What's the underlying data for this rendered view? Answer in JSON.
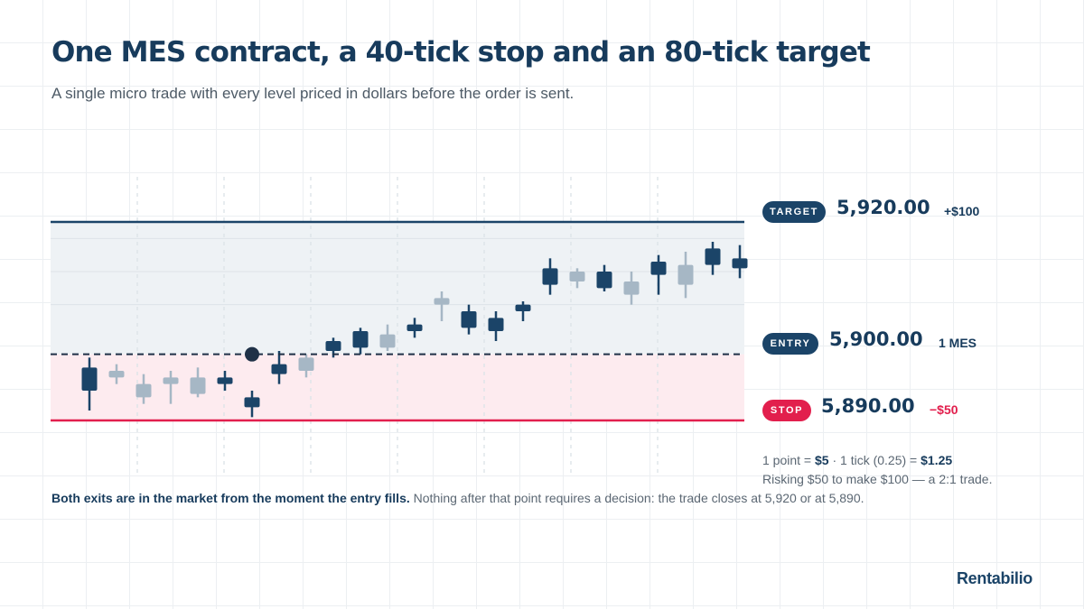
{
  "header": {
    "title": "One MES contract, a 40-tick stop and an 80-tick target",
    "subtitle": "A single micro trade with every level priced in dollars before the order is sent."
  },
  "levels": {
    "target": {
      "badge": "TARGET",
      "price": "5,920.00",
      "note": "+$100"
    },
    "entry": {
      "badge": "ENTRY",
      "price": "5,900.00",
      "note": "1 MES"
    },
    "stop": {
      "badge": "STOP",
      "price": "5,890.00",
      "note": "−$50"
    }
  },
  "math": {
    "point_pre": "1 point = ",
    "point_value": "$5",
    "tick_pre": " · 1 tick (0.25) = ",
    "tick_value": "$1.25",
    "risk_text": "Risking $50 to make $100 — a 2:1 trade."
  },
  "footnote": {
    "bold": "Both exits are in the market from the moment the entry fills.",
    "rest": " Nothing after that point requires a decision: the trade closes at 5,920 or at 5,890."
  },
  "brand": {
    "name": "Rentabilio"
  },
  "colors": {
    "navy": "#1b4468",
    "muted_candle": "#a6b7c5",
    "stop_red": "#e21f4d",
    "reward_zone": "#eef2f5",
    "risk_zone": "#fdebef"
  },
  "chart_data": {
    "type": "candlestick",
    "levels": {
      "target": 5920,
      "entry": 5900,
      "stop": 5890
    },
    "entry_candle_index": 6,
    "candles": [
      {
        "open": 5898.0,
        "close": 5894.5,
        "high": 5899.5,
        "low": 5891.5,
        "active": true
      },
      {
        "open": 5897.5,
        "close": 5896.5,
        "high": 5898.5,
        "low": 5895.5,
        "active": false
      },
      {
        "open": 5895.5,
        "close": 5893.5,
        "high": 5897.0,
        "low": 5892.5,
        "active": false
      },
      {
        "open": 5896.5,
        "close": 5895.5,
        "high": 5897.5,
        "low": 5892.5,
        "active": false
      },
      {
        "open": 5896.5,
        "close": 5894.0,
        "high": 5898.0,
        "low": 5893.5,
        "active": false
      },
      {
        "open": 5896.5,
        "close": 5895.5,
        "high": 5897.5,
        "low": 5894.5,
        "active": true
      },
      {
        "open": 5893.5,
        "close": 5892.0,
        "high": 5894.5,
        "low": 5890.5,
        "active": true
      },
      {
        "open": 5898.5,
        "close": 5897.0,
        "high": 5900.5,
        "low": 5895.5,
        "active": true
      },
      {
        "open": 5899.5,
        "close": 5897.5,
        "high": 5900.0,
        "low": 5896.5,
        "active": false
      },
      {
        "open": 5902.0,
        "close": 5900.5,
        "high": 5902.5,
        "low": 5899.5,
        "active": true
      },
      {
        "open": 5903.5,
        "close": 5901.0,
        "high": 5904.0,
        "low": 5900.0,
        "active": true
      },
      {
        "open": 5903.0,
        "close": 5901.0,
        "high": 5904.5,
        "low": 5900.5,
        "active": false
      },
      {
        "open": 5904.5,
        "close": 5903.5,
        "high": 5905.5,
        "low": 5902.5,
        "active": true
      },
      {
        "open": 5908.5,
        "close": 5907.5,
        "high": 5909.5,
        "low": 5905.0,
        "active": false
      },
      {
        "open": 5906.5,
        "close": 5904.0,
        "high": 5907.5,
        "low": 5903.0,
        "active": true
      },
      {
        "open": 5905.5,
        "close": 5903.5,
        "high": 5906.5,
        "low": 5902.0,
        "active": true
      },
      {
        "open": 5907.5,
        "close": 5906.5,
        "high": 5908.0,
        "low": 5905.0,
        "active": true
      },
      {
        "open": 5913.0,
        "close": 5910.5,
        "high": 5914.5,
        "low": 5909.0,
        "active": true
      },
      {
        "open": 5912.5,
        "close": 5911.0,
        "high": 5913.0,
        "low": 5910.0,
        "active": false
      },
      {
        "open": 5912.5,
        "close": 5910.0,
        "high": 5913.5,
        "low": 5909.5,
        "active": true
      },
      {
        "open": 5911.0,
        "close": 5909.0,
        "high": 5912.5,
        "low": 5907.5,
        "active": false
      },
      {
        "open": 5914.0,
        "close": 5912.0,
        "high": 5915.0,
        "low": 5909.0,
        "active": true
      },
      {
        "open": 5913.5,
        "close": 5910.5,
        "high": 5915.5,
        "low": 5908.5,
        "active": false
      },
      {
        "open": 5916.0,
        "close": 5913.5,
        "high": 5917.0,
        "low": 5912.0,
        "active": true
      },
      {
        "open": 5914.5,
        "close": 5913.0,
        "high": 5916.5,
        "low": 5911.5,
        "active": true
      }
    ]
  }
}
